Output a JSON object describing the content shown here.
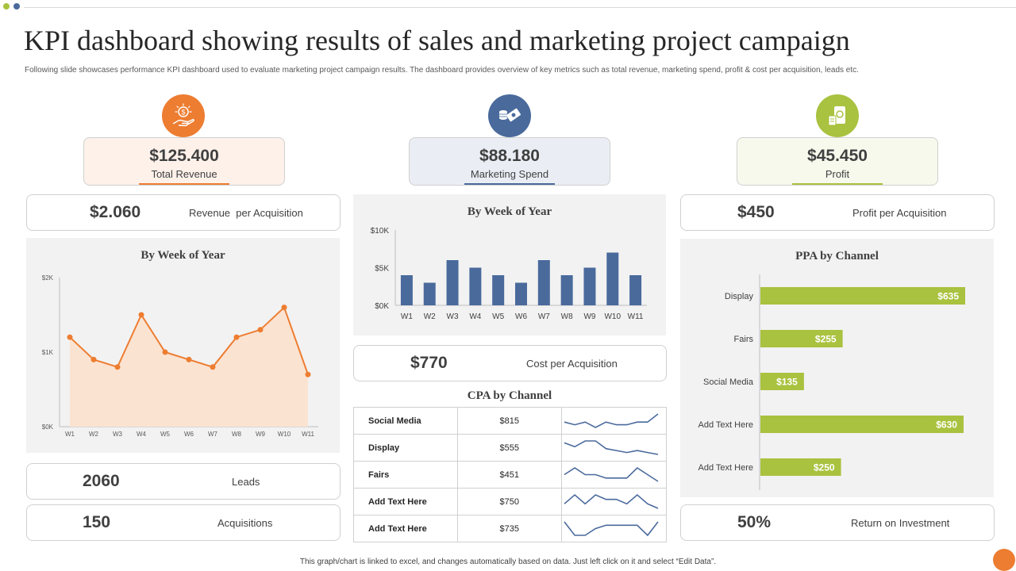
{
  "header": {
    "title": "KPI dashboard showing results of sales and marketing project campaign",
    "subtitle": "Following slide showcases performance KPI dashboard used to evaluate marketing project campaign results. The dashboard provides overview of key metrics such as total revenue, marketing spend, profit & cost per acquisition, leads etc."
  },
  "colors": {
    "orange": "#ed7d31",
    "blue": "#4a6a9c",
    "green": "#a9c23f",
    "panel_bg": "#f2f2f2"
  },
  "kpis": {
    "revenue": {
      "value": "$125.400",
      "label": "Total Revenue",
      "icon": "money-hand-icon"
    },
    "marketing": {
      "value": "$88.180",
      "label": "Marketing Spend",
      "icon": "cash-coins-icon"
    },
    "profit": {
      "value": "$45.450",
      "label": "Profit",
      "icon": "money-jar-icon"
    }
  },
  "metrics": {
    "rpa": {
      "value": "$2.060",
      "label": "Revenue  per Acquisition"
    },
    "cpa": {
      "value": "$770",
      "label": "Cost per Acquisition"
    },
    "ppa": {
      "value": "$450",
      "label": "Profit per Acquisition"
    },
    "leads": {
      "value": "2060",
      "label": "Leads"
    },
    "acquisitions": {
      "value": "150",
      "label": "Acquisitions"
    },
    "roi": {
      "value": "50%",
      "label": "Return on Investment"
    }
  },
  "chart_data": [
    {
      "type": "area",
      "title": "By Week of Year",
      "categories": [
        "W1",
        "W2",
        "W3",
        "W4",
        "W5",
        "W6",
        "W7",
        "W8",
        "W9",
        "W10",
        "W11"
      ],
      "values": [
        1200,
        900,
        800,
        1500,
        1000,
        900,
        800,
        1200,
        1300,
        1600,
        700
      ],
      "ylim": [
        0,
        2000
      ],
      "yticks": [
        "$0K",
        "$1K",
        "$2K"
      ],
      "color": "#ed7d31",
      "fill": "#fbe3d2"
    },
    {
      "type": "bar",
      "title": "By Week of Year",
      "categories": [
        "W1",
        "W2",
        "W3",
        "W4",
        "W5",
        "W6",
        "W7",
        "W8",
        "W9",
        "W10",
        "W11"
      ],
      "values": [
        4000,
        3000,
        6000,
        5000,
        4000,
        3000,
        6000,
        4000,
        5000,
        7000,
        4000
      ],
      "ylim": [
        0,
        10000
      ],
      "yticks": [
        "$0K",
        "$5K",
        "$10K"
      ],
      "color": "#4a6a9c"
    },
    {
      "type": "bar",
      "orientation": "horizontal",
      "title": "PPA by Channel",
      "categories": [
        "Display",
        "Fairs",
        "Social Media",
        "Add Text Here",
        "Add Text Here"
      ],
      "values": [
        635,
        255,
        135,
        630,
        250
      ],
      "labels": [
        "$635",
        "$255",
        "$135",
        "$630",
        "$250"
      ],
      "color": "#a9c23f"
    },
    {
      "type": "table",
      "title": "CPA by Channel",
      "rows": [
        {
          "channel": "Social Media",
          "value": "$815",
          "trend": [
            5,
            4,
            5,
            3,
            5,
            4,
            4,
            5,
            5,
            8
          ]
        },
        {
          "channel": "Display",
          "value": "$555",
          "trend": [
            6,
            4,
            7,
            7,
            3,
            2,
            1,
            2,
            1,
            0
          ]
        },
        {
          "channel": "Fairs",
          "value": "$451",
          "trend": [
            5,
            7,
            5,
            5,
            4,
            4,
            4,
            7,
            5,
            3
          ]
        },
        {
          "channel": "Add Text Here",
          "value": "$750",
          "trend": [
            3,
            5,
            3,
            5,
            4,
            4,
            3,
            5,
            3,
            2
          ]
        },
        {
          "channel": "Add Text Here",
          "value": "$735",
          "trend": [
            6,
            2,
            2,
            4,
            5,
            5,
            5,
            5,
            2,
            6
          ]
        }
      ],
      "color": "#4a6a9c"
    }
  ],
  "footer": "This graph/chart is linked to excel, and changes automatically based on data. Just left click on it and select “Edit Data”."
}
